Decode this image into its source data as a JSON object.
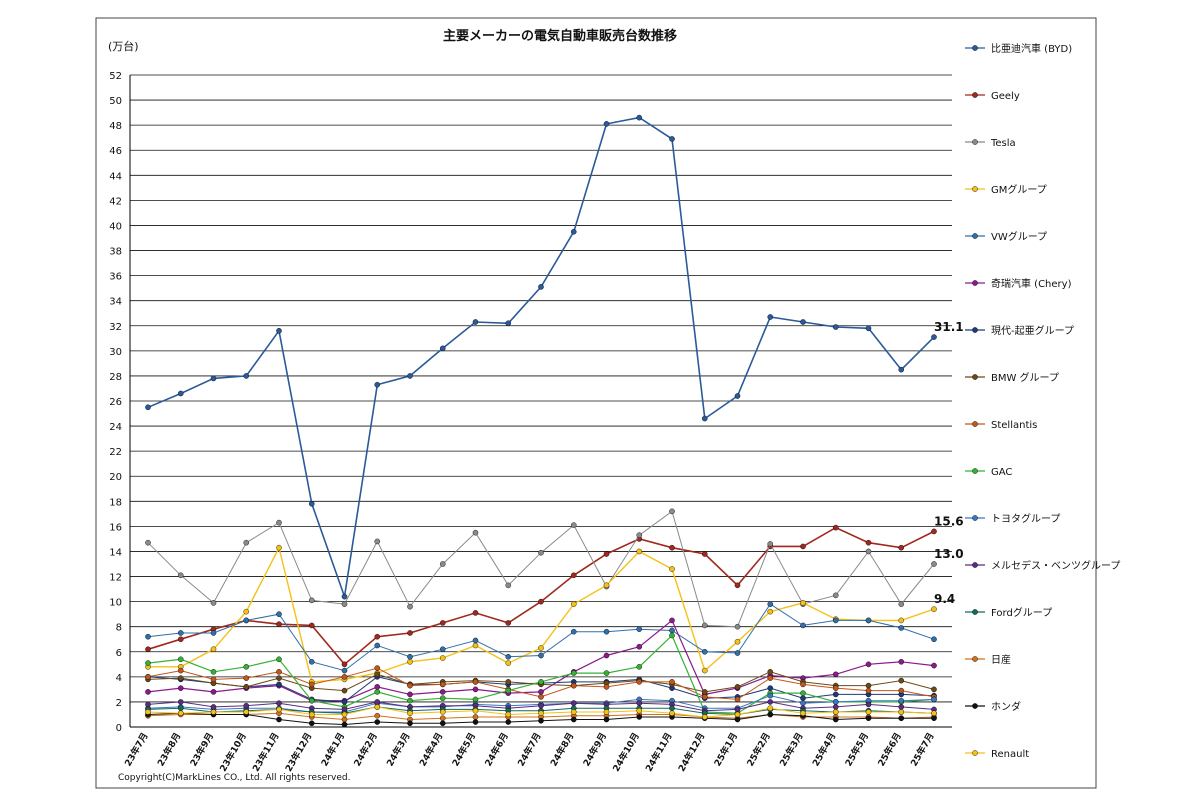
{
  "chart_data": {
    "type": "line",
    "title": "主要メーカーの電気自動車販売台数推移",
    "ylabel": "(万台)",
    "ylim": [
      0,
      52
    ],
    "yticks": [
      0,
      2,
      4,
      6,
      8,
      10,
      12,
      14,
      16,
      18,
      20,
      22,
      24,
      26,
      28,
      30,
      32,
      34,
      36,
      38,
      40,
      42,
      44,
      46,
      48,
      50,
      52
    ],
    "grid": true,
    "legend_position": "right",
    "copyright": "Copyright(C)MarkLines CO., Ltd. All rights reserved.",
    "categories": [
      "23年7月",
      "23年8月",
      "23年9月",
      "23年10月",
      "23年11月",
      "23年12月",
      "24年1月",
      "24年2月",
      "24年3月",
      "24年4月",
      "24年5月",
      "24年6月",
      "24年7月",
      "24年8月",
      "24年9月",
      "24年10月",
      "24年11月",
      "24年12月",
      "25年1月",
      "25年2月",
      "25年3月",
      "25年4月",
      "25年5月",
      "25年6月",
      "25年7月"
    ],
    "annotations": [
      {
        "text": "31.1",
        "series": "比亜迪汽車 (BYD)"
      },
      {
        "text": "15.6",
        "series": "Geely"
      },
      {
        "text": "13.0",
        "series": "Tesla"
      },
      {
        "text": "9.4",
        "series": "GMグループ"
      }
    ],
    "series": [
      {
        "name": "比亜迪汽車 (BYD)",
        "color": "#2b5a9a",
        "width": 1.6,
        "values": [
          25.5,
          26.6,
          27.8,
          28.0,
          31.6,
          17.8,
          10.4,
          27.3,
          28.0,
          30.2,
          32.3,
          32.2,
          35.1,
          39.5,
          48.1,
          48.6,
          46.9,
          24.6,
          26.4,
          32.7,
          32.3,
          31.9,
          31.8,
          28.5,
          31.1
        ]
      },
      {
        "name": "Geely",
        "color": "#a0281e",
        "width": 1.6,
        "values": [
          6.2,
          7.0,
          7.8,
          8.5,
          8.2,
          8.1,
          5.0,
          7.2,
          7.5,
          8.3,
          9.1,
          8.3,
          10.0,
          12.1,
          13.8,
          15.0,
          14.3,
          13.8,
          11.3,
          14.4,
          14.4,
          15.9,
          14.7,
          14.3,
          15.6
        ]
      },
      {
        "name": "Tesla",
        "color": "#8a8a8a",
        "width": 1,
        "values": [
          14.7,
          12.1,
          9.9,
          14.7,
          16.3,
          10.1,
          9.8,
          14.8,
          9.6,
          13.0,
          15.5,
          11.3,
          13.9,
          16.1,
          11.2,
          15.3,
          17.2,
          8.1,
          8.0,
          14.6,
          9.8,
          10.5,
          14.0,
          9.8,
          13.0
        ]
      },
      {
        "name": "GMグループ",
        "color": "#f5c116",
        "width": 1.4,
        "values": [
          4.8,
          4.8,
          6.2,
          9.2,
          14.3,
          3.6,
          3.8,
          4.3,
          5.2,
          5.5,
          6.5,
          5.1,
          6.3,
          9.8,
          11.3,
          14.0,
          12.6,
          4.5,
          6.8,
          9.2,
          9.9,
          8.6,
          8.5,
          8.5,
          9.4
        ]
      },
      {
        "name": "VWグループ",
        "color": "#2f6faa",
        "width": 1,
        "values": [
          7.2,
          7.5,
          7.5,
          8.5,
          9.0,
          5.2,
          4.5,
          6.5,
          5.6,
          6.2,
          6.9,
          5.6,
          5.7,
          7.6,
          7.6,
          7.8,
          7.7,
          6.0,
          5.9,
          9.8,
          8.1,
          8.5,
          8.5,
          7.9,
          7.0
        ]
      },
      {
        "name": "奇瑞汽車 (Chery)",
        "color": "#8b1a8b",
        "width": 1.2,
        "values": [
          2.8,
          3.1,
          2.8,
          3.1,
          3.3,
          2.1,
          2.1,
          3.2,
          2.6,
          2.8,
          3.0,
          2.7,
          2.8,
          4.4,
          5.7,
          6.4,
          8.5,
          2.6,
          3.1,
          4.1,
          3.9,
          4.2,
          5.0,
          5.2,
          4.9
        ]
      },
      {
        "name": "現代-起亜グループ",
        "color": "#1e3a78",
        "width": 1,
        "values": [
          4.0,
          3.8,
          3.5,
          3.2,
          3.4,
          2.2,
          2.0,
          4.0,
          3.4,
          3.4,
          3.6,
          3.4,
          3.5,
          3.6,
          3.6,
          3.8,
          3.1,
          2.3,
          2.4,
          3.1,
          2.3,
          2.6,
          2.6,
          2.6,
          2.5
        ]
      },
      {
        "name": "BMW グループ",
        "color": "#6b4a16",
        "width": 1,
        "values": [
          3.8,
          3.9,
          3.5,
          3.2,
          3.9,
          3.1,
          2.9,
          4.2,
          3.4,
          3.6,
          3.7,
          3.6,
          3.4,
          3.3,
          3.5,
          3.7,
          3.4,
          2.8,
          3.2,
          4.4,
          3.6,
          3.3,
          3.3,
          3.7,
          3.0
        ]
      },
      {
        "name": "Stellantis",
        "color": "#c1571a",
        "width": 1,
        "values": [
          4.0,
          4.5,
          3.8,
          3.9,
          4.4,
          3.4,
          4.0,
          4.7,
          3.3,
          3.4,
          3.6,
          3.0,
          2.4,
          3.3,
          3.2,
          3.6,
          3.6,
          2.4,
          2.2,
          3.9,
          3.4,
          3.1,
          2.9,
          2.9,
          2.4
        ]
      },
      {
        "name": "GAC",
        "color": "#34b233",
        "width": 1.2,
        "values": [
          5.1,
          5.4,
          4.4,
          4.8,
          5.4,
          2.1,
          1.6,
          2.8,
          2.1,
          2.3,
          2.2,
          2.9,
          3.6,
          4.3,
          4.3,
          4.8,
          7.3,
          1.2,
          1.1,
          2.7,
          2.7,
          2.0,
          2.0,
          2.0,
          2.2
        ]
      },
      {
        "name": "トヨタグループ",
        "color": "#3a78c2",
        "width": 1,
        "values": [
          1.5,
          1.6,
          1.4,
          1.5,
          1.5,
          1.2,
          1.2,
          1.9,
          1.6,
          1.6,
          1.8,
          1.7,
          1.8,
          1.9,
          1.9,
          2.2,
          2.1,
          1.5,
          1.5,
          2.5,
          1.9,
          2.0,
          2.1,
          2.1,
          2.2
        ]
      },
      {
        "name": "メルセデス・ベンツグループ",
        "color": "#5a2d82",
        "width": 1,
        "values": [
          1.8,
          2.0,
          1.6,
          1.7,
          1.9,
          1.5,
          1.4,
          2.0,
          1.6,
          1.7,
          1.7,
          1.5,
          1.7,
          1.9,
          1.8,
          1.9,
          1.8,
          1.3,
          1.4,
          2.0,
          1.5,
          1.6,
          1.8,
          1.6,
          1.4
        ]
      },
      {
        "name": "Fordグループ",
        "color": "#136b5c",
        "width": 1,
        "values": [
          1.4,
          1.5,
          1.2,
          1.3,
          1.4,
          1.2,
          1.1,
          1.6,
          1.3,
          1.4,
          1.4,
          1.3,
          1.3,
          1.5,
          1.5,
          1.5,
          1.5,
          1.1,
          1.0,
          1.4,
          1.3,
          1.2,
          1.3,
          1.2,
          1.1
        ]
      },
      {
        "name": "日産",
        "color": "#d0711c",
        "width": 1,
        "values": [
          0.9,
          1.0,
          1.0,
          1.0,
          1.1,
          0.8,
          0.6,
          0.9,
          0.6,
          0.7,
          0.8,
          0.8,
          0.8,
          0.9,
          0.9,
          1.0,
          1.0,
          0.8,
          0.7,
          1.0,
          0.8,
          0.8,
          0.8,
          0.7,
          0.8
        ]
      },
      {
        "name": "ホンダ",
        "color": "#111111",
        "width": 1,
        "values": [
          1.0,
          1.1,
          1.0,
          1.0,
          0.6,
          0.3,
          0.2,
          0.4,
          0.3,
          0.3,
          0.4,
          0.4,
          0.5,
          0.6,
          0.6,
          0.8,
          0.8,
          0.7,
          0.6,
          1.0,
          0.9,
          0.6,
          0.7,
          0.7,
          0.7
        ]
      },
      {
        "name": "Renault",
        "color": "#f5c116",
        "width": 1,
        "values": [
          1.2,
          1.1,
          1.2,
          1.2,
          1.4,
          1.0,
          1.0,
          1.6,
          1.1,
          1.2,
          1.3,
          1.0,
          1.1,
          1.2,
          1.2,
          1.3,
          1.1,
          0.8,
          1.0,
          1.5,
          1.1,
          1.2,
          1.2,
          1.2,
          1.1
        ]
      }
    ]
  }
}
